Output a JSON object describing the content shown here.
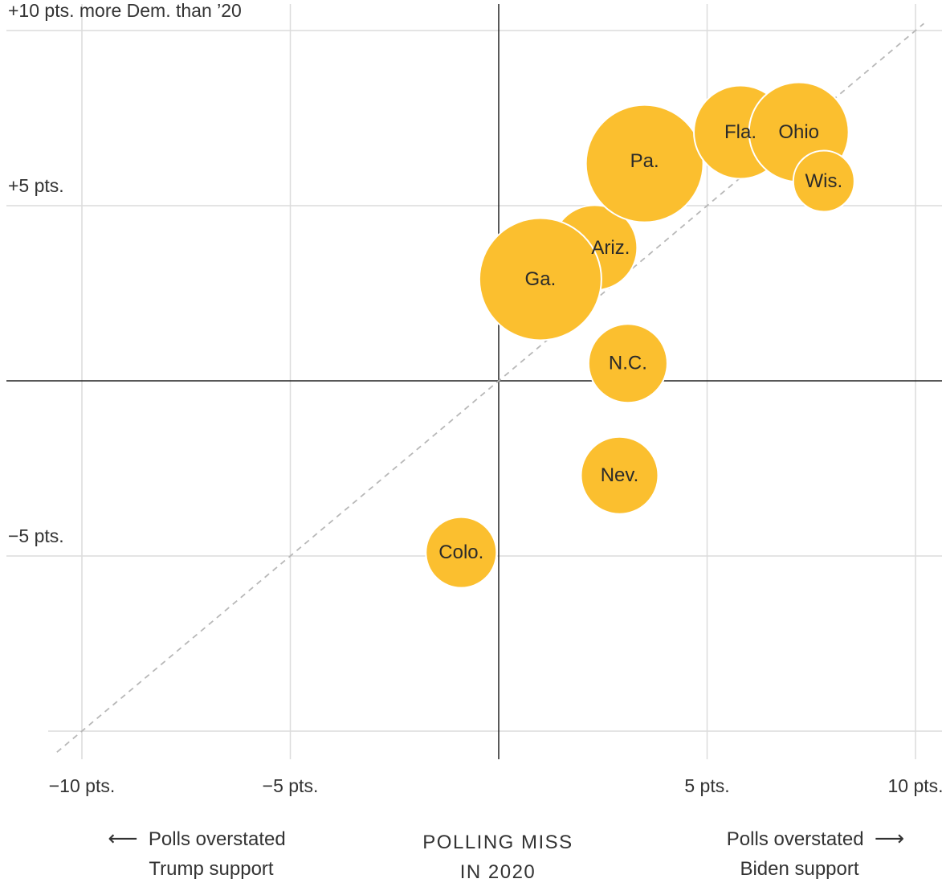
{
  "chart_data": {
    "type": "scatter",
    "title": "",
    "xlabel": "POLLING MISS IN 2020",
    "ylabel": "+10 pts. more Dem. than ’20",
    "xlim": [
      -10.2,
      10.2
    ],
    "ylim": [
      -10.8,
      10.4
    ],
    "x_ticks": [
      {
        "value": -10,
        "label": "−10 pts."
      },
      {
        "value": -5,
        "label": "−5 pts."
      },
      {
        "value": 5,
        "label": "5 pts."
      },
      {
        "value": 10,
        "label": "10 pts."
      }
    ],
    "y_ticks": [
      {
        "value": 10,
        "label": "+10 pts. more Dem. than ’20"
      },
      {
        "value": 5,
        "label": "+5 pts."
      },
      {
        "value": -5,
        "label": "−5 pts."
      },
      {
        "value": -10,
        "label": ""
      }
    ],
    "grid": true,
    "reference_line": "y = x",
    "color": "#fbbf2f",
    "points": [
      {
        "label": "Ariz.",
        "x": 2.3,
        "y": 3.8,
        "size": 53
      },
      {
        "label": "Ga.",
        "x": 1.0,
        "y": 2.9,
        "size": 76
      },
      {
        "label": "Pa.",
        "x": 3.5,
        "y": 6.2,
        "size": 73
      },
      {
        "label": "Fla.",
        "x": 5.8,
        "y": 7.1,
        "size": 58
      },
      {
        "label": "Ohio",
        "x": 7.2,
        "y": 7.1,
        "size": 62
      },
      {
        "label": "Wis.",
        "x": 7.8,
        "y": 5.7,
        "size": 38
      },
      {
        "label": "N.C.",
        "x": 3.1,
        "y": 0.5,
        "size": 49
      },
      {
        "label": "Nev.",
        "x": 2.9,
        "y": -2.7,
        "size": 48
      },
      {
        "label": "Colo.",
        "x": -0.9,
        "y": -4.9,
        "size": 44
      }
    ]
  },
  "notes": {
    "left_line1": "Polls overstated",
    "left_line2": "Trump support",
    "right_line1": "Polls overstated",
    "right_line2": "Biden support",
    "xtitle_line1": "POLLING MISS",
    "xtitle_line2": "IN 2020",
    "left_arrow": "⟵",
    "right_arrow": "⟶"
  }
}
